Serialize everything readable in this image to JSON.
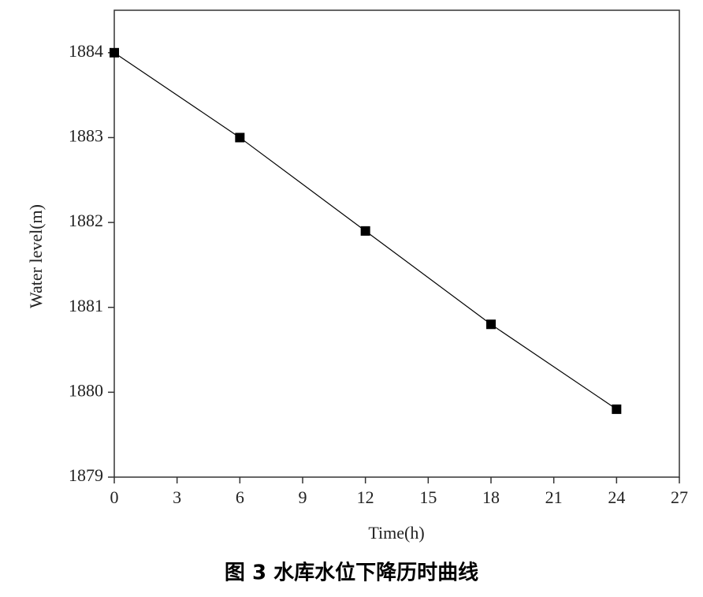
{
  "chart_data": {
    "type": "line",
    "x_label": "Time(h)",
    "y_label": "Water level(m)",
    "caption": "图 3  水库水位下降历时曲线",
    "x": [
      0,
      6,
      12,
      18,
      24
    ],
    "series": [
      {
        "name": "Water level",
        "color": "#000000",
        "values": [
          1884,
          1883,
          1881.9,
          1880.8,
          1879.8
        ]
      }
    ],
    "xlim": [
      0,
      27
    ],
    "xticks": [
      0,
      3,
      6,
      9,
      12,
      15,
      18,
      21,
      24,
      27
    ],
    "ylim": [
      1879,
      1884.5
    ],
    "yticks": [
      1879,
      1880,
      1881,
      1882,
      1883,
      1884
    ],
    "marker": "square",
    "grid": false
  }
}
